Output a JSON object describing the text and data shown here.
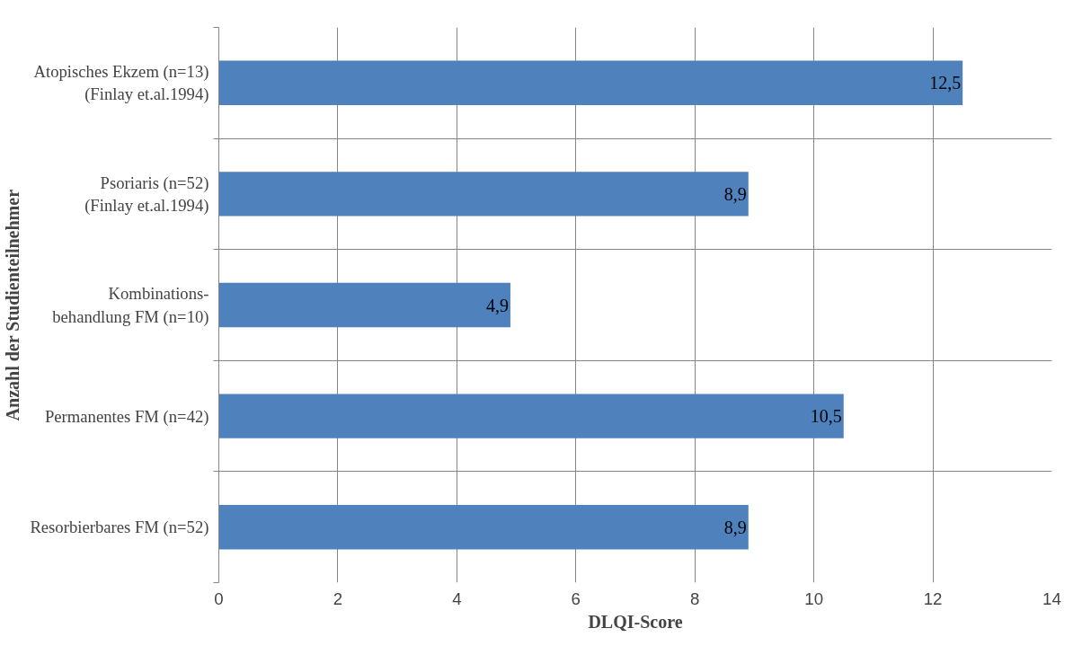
{
  "chart_data": {
    "type": "bar",
    "orientation": "horizontal",
    "categories": [
      "Atopisches Ekzem (n=13)\n(Finlay et.al.1994)",
      "Psoriaris (n=52)\n(Finlay et.al.1994)",
      "Kombinations-\nbehandlung FM (n=10)",
      "Permanentes FM (n=42)",
      "Resorbierbares FM (n=52)"
    ],
    "values": [
      12.5,
      8.9,
      4.9,
      10.5,
      8.9
    ],
    "value_labels": [
      "12,5",
      "8,9",
      "4,9",
      "10,5",
      "8,9"
    ],
    "color": "#4f81bd",
    "xlim": [
      0,
      14
    ],
    "xticks": [
      0,
      2,
      4,
      6,
      8,
      10,
      12,
      14
    ],
    "xlabel": "DLQI-Score",
    "ylabel": "Anzahl der Studienteilnehmer",
    "grid": true
  }
}
